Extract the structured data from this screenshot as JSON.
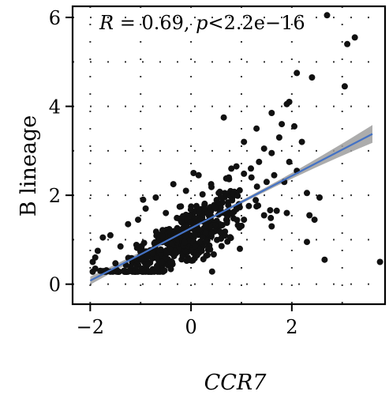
{
  "chart_data": {
    "type": "scatter",
    "title": "",
    "xlabel": "CCR7",
    "ylabel": "B lineage",
    "xlim": [
      -2.35,
      3.85
    ],
    "ylim": [
      -0.45,
      6.25
    ],
    "xticks": [
      -2,
      0,
      2
    ],
    "yticks": [
      0,
      2,
      4,
      6
    ],
    "xtick_labels": [
      "−2",
      "0",
      "2"
    ],
    "ytick_labels": [
      "0",
      "2",
      "4",
      "6"
    ],
    "grid": "dotted",
    "legend": "none",
    "annotation": {
      "r_symbol": "R",
      "r_value": " = 0.69, ",
      "p_symbol": "p",
      "p_value": "<2.2e−16"
    },
    "fit_line": {
      "x_start": -2.0,
      "y_start": 0.08,
      "x_end": 3.6,
      "y_end": 3.38,
      "ci_halfwidth_start": 0.09,
      "ci_halfwidth_mid": 0.035,
      "ci_halfwidth_end": 0.2,
      "color": "#4472c4",
      "ci_color": "#9e9e9e"
    },
    "point_color": "#111111",
    "points": [
      [
        2.7,
        6.05
      ],
      [
        3.25,
        5.55
      ],
      [
        3.1,
        5.4
      ],
      [
        2.1,
        4.75
      ],
      [
        2.4,
        4.65
      ],
      [
        3.05,
        4.45
      ],
      [
        1.95,
        4.1
      ],
      [
        1.9,
        4.05
      ],
      [
        1.6,
        3.85
      ],
      [
        2.05,
        3.55
      ],
      [
        0.65,
        3.75
      ],
      [
        1.8,
        3.6
      ],
      [
        1.3,
        3.5
      ],
      [
        1.05,
        3.2
      ],
      [
        1.75,
        3.3
      ],
      [
        2.2,
        3.2
      ],
      [
        1.45,
        3.05
      ],
      [
        1.6,
        2.95
      ],
      [
        1.35,
        2.75
      ],
      [
        0.9,
        2.65
      ],
      [
        0.8,
        2.6
      ],
      [
        1.65,
        2.45
      ],
      [
        1.95,
        2.75
      ],
      [
        2.1,
        2.55
      ],
      [
        0.15,
        2.45
      ],
      [
        0.05,
        2.5
      ],
      [
        0.75,
        2.4
      ],
      [
        1.2,
        2.4
      ],
      [
        1.5,
        2.3
      ],
      [
        1.85,
        2.3
      ],
      [
        2.3,
        2.05
      ],
      [
        2.55,
        1.95
      ],
      [
        2.35,
        1.55
      ],
      [
        2.45,
        1.45
      ],
      [
        1.6,
        1.3
      ],
      [
        2.3,
        0.95
      ],
      [
        2.65,
        0.55
      ],
      [
        3.75,
        0.5
      ],
      [
        -0.1,
        2.1
      ],
      [
        -0.35,
        2.25
      ],
      [
        0.4,
        2.25
      ],
      [
        0.55,
        2.05
      ],
      [
        -0.7,
        1.95
      ],
      [
        -0.95,
        1.9
      ],
      [
        -1.05,
        1.45
      ],
      [
        -1.25,
        1.35
      ],
      [
        -1.6,
        1.1
      ],
      [
        -1.75,
        1.05
      ],
      [
        -1.4,
        0.85
      ],
      [
        -1.85,
        0.75
      ],
      [
        -1.9,
        0.6
      ],
      [
        -1.95,
        0.5
      ],
      [
        -1.9,
        0.35
      ],
      [
        -1.8,
        0.3
      ],
      [
        0.95,
        1.8
      ],
      [
        1.3,
        1.75
      ],
      [
        1.7,
        1.65
      ],
      [
        1.05,
        1.45
      ],
      [
        1.45,
        1.55
      ],
      [
        1.9,
        1.6
      ],
      [
        -0.9,
        1.7
      ],
      [
        -0.5,
        1.6
      ],
      [
        -0.2,
        1.75
      ],
      [
        0.25,
        1.7
      ],
      [
        0.35,
        1.55
      ],
      [
        0.7,
        1.45
      ]
    ],
    "cloud": {
      "count": 460,
      "x_mean": -0.15,
      "x_sd": 0.62,
      "slope": 0.58,
      "intercept": 1.08,
      "y_sd": 0.3,
      "x_min": -1.95,
      "x_max": 1.6,
      "y_min": 0.28
    }
  }
}
